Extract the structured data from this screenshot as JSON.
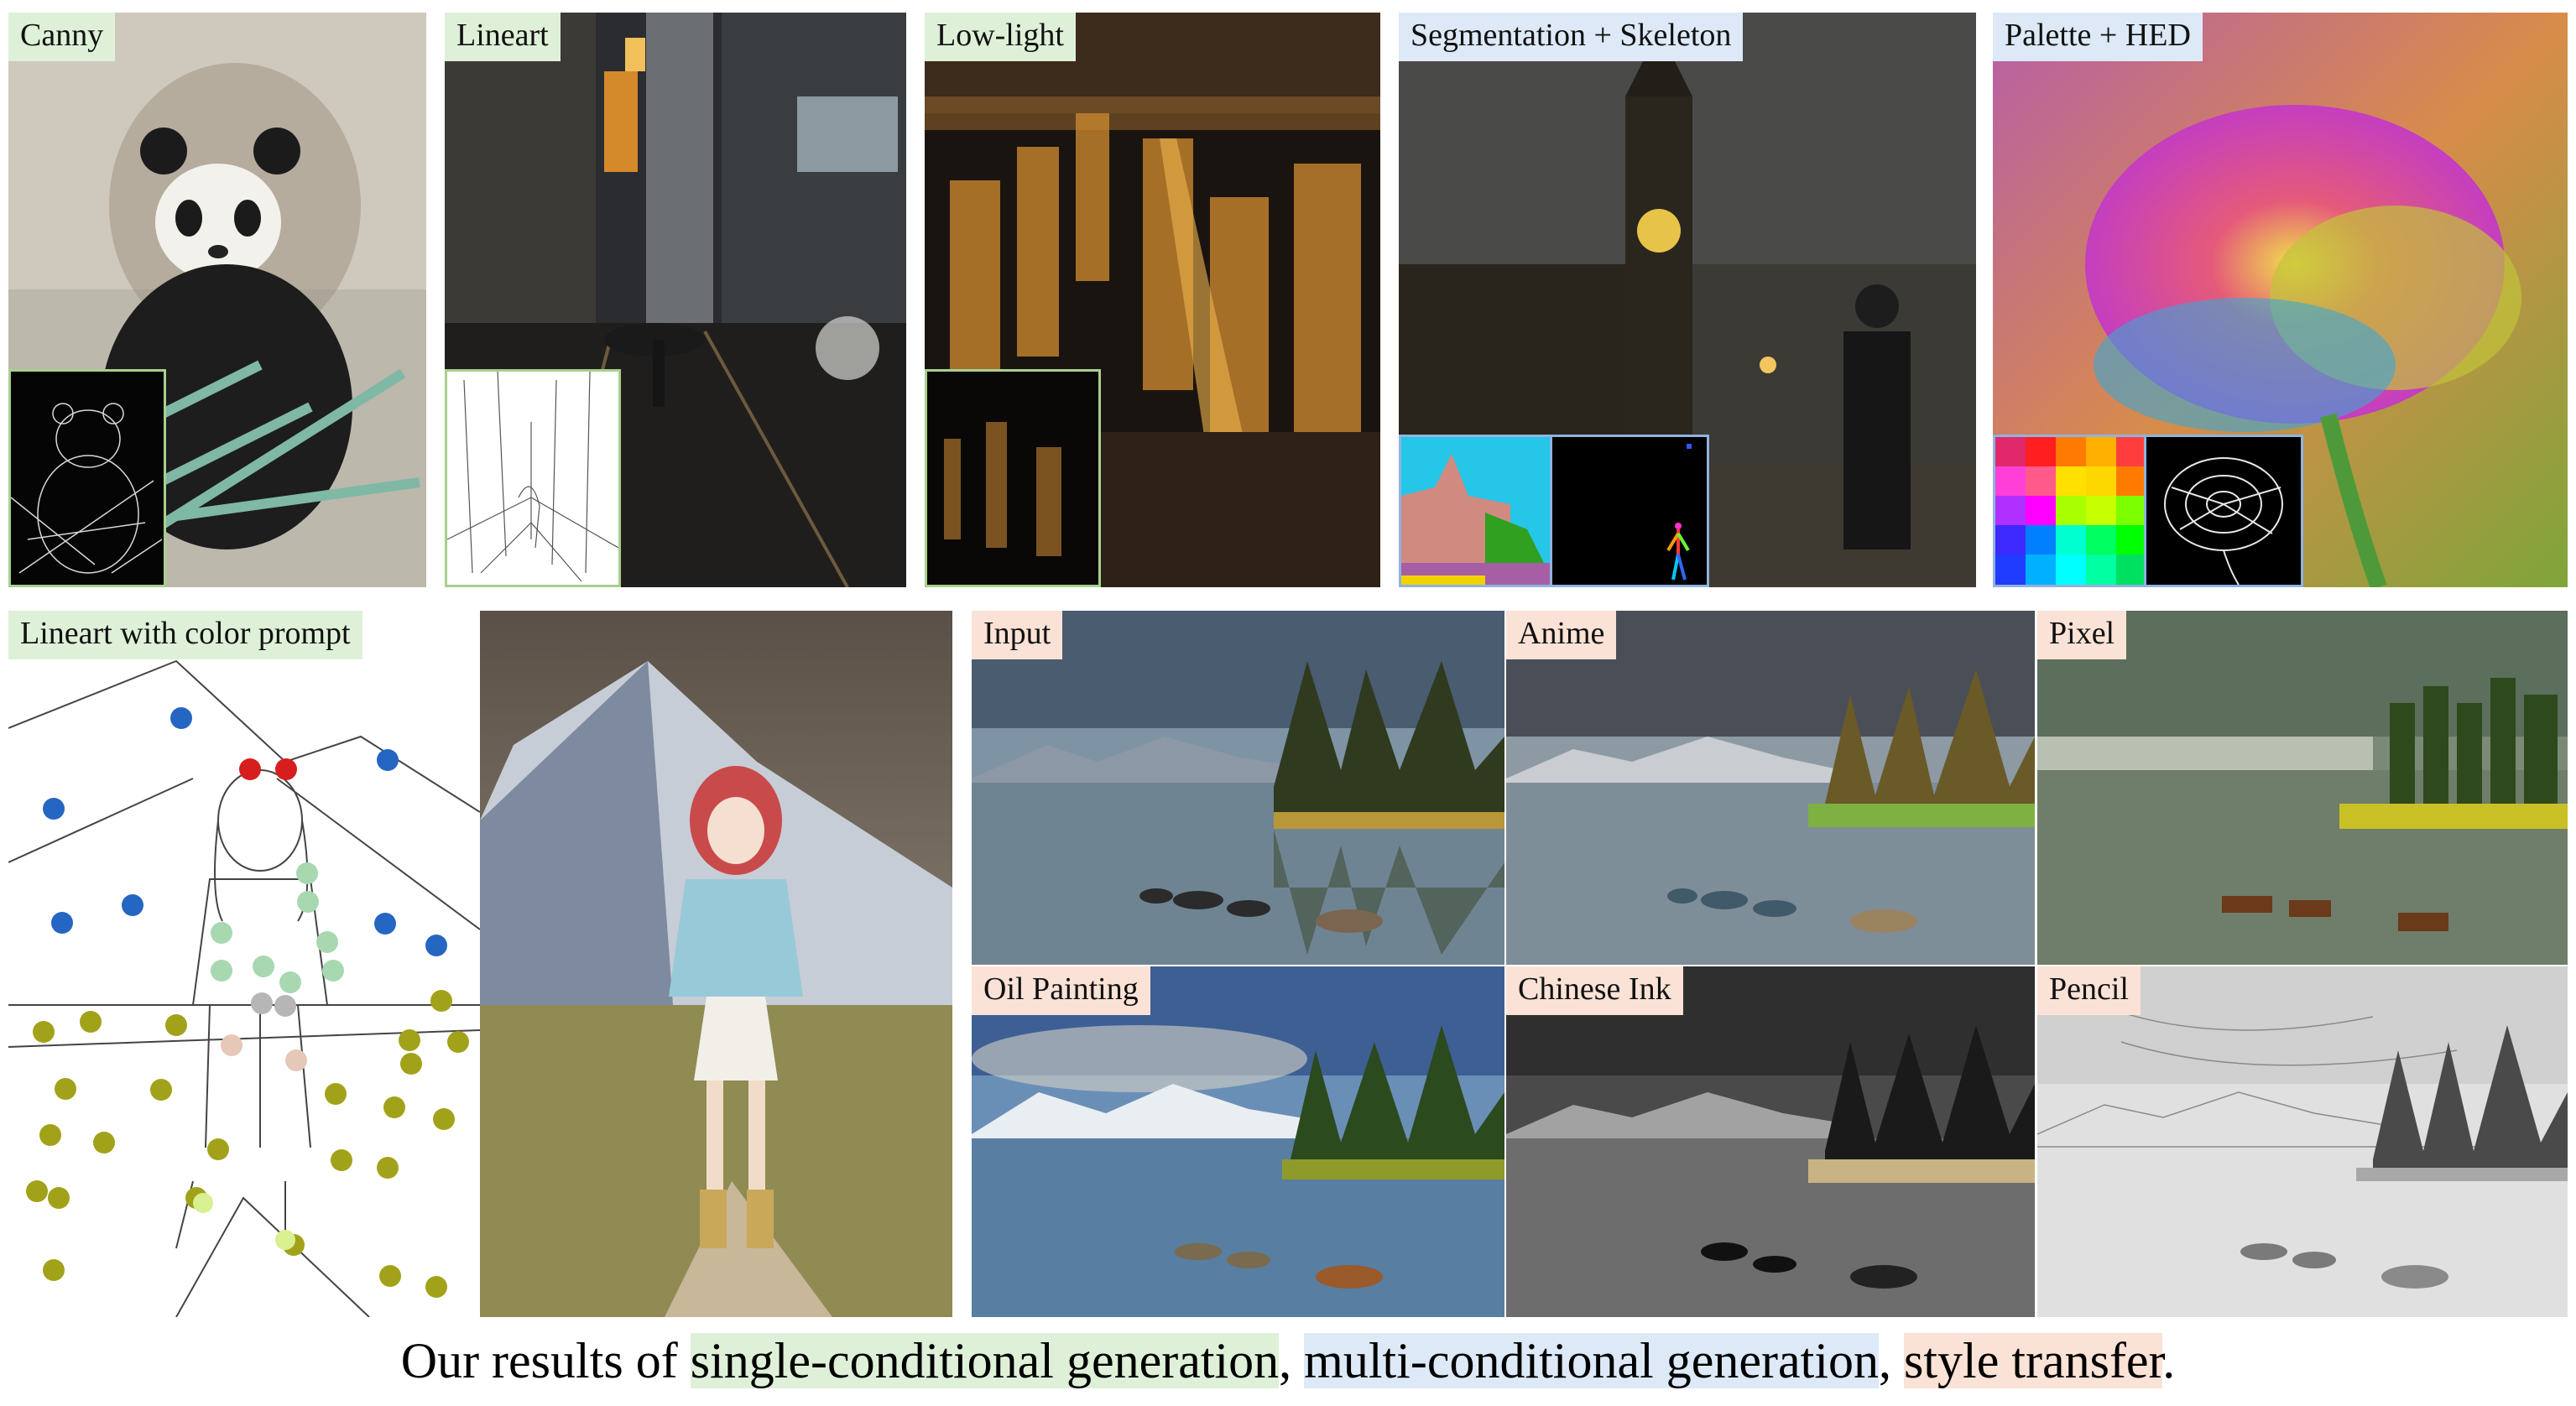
{
  "panels": {
    "canny": "Canny",
    "lineart": "Lineart",
    "lowlight": "Low-light",
    "segskel": "Segmentation + Skeleton",
    "palette": "Palette + HED",
    "lineart_color": "Lineart with color prompt",
    "input": "Input",
    "anime": "Anime",
    "pixel": "Pixel",
    "oil": "Oil Painting",
    "ink": "Chinese Ink",
    "pencil": "Pencil"
  },
  "caption": {
    "prefix": "Our results of ",
    "single": "single-conditional generation",
    "sep1": ", ",
    "multi": "multi-conditional generation",
    "sep2": ", ",
    "style": "style transfer",
    "end": "."
  },
  "colors": {
    "single": "#dff0d8",
    "multi": "#dde9f7",
    "style": "#fbe2d6"
  }
}
